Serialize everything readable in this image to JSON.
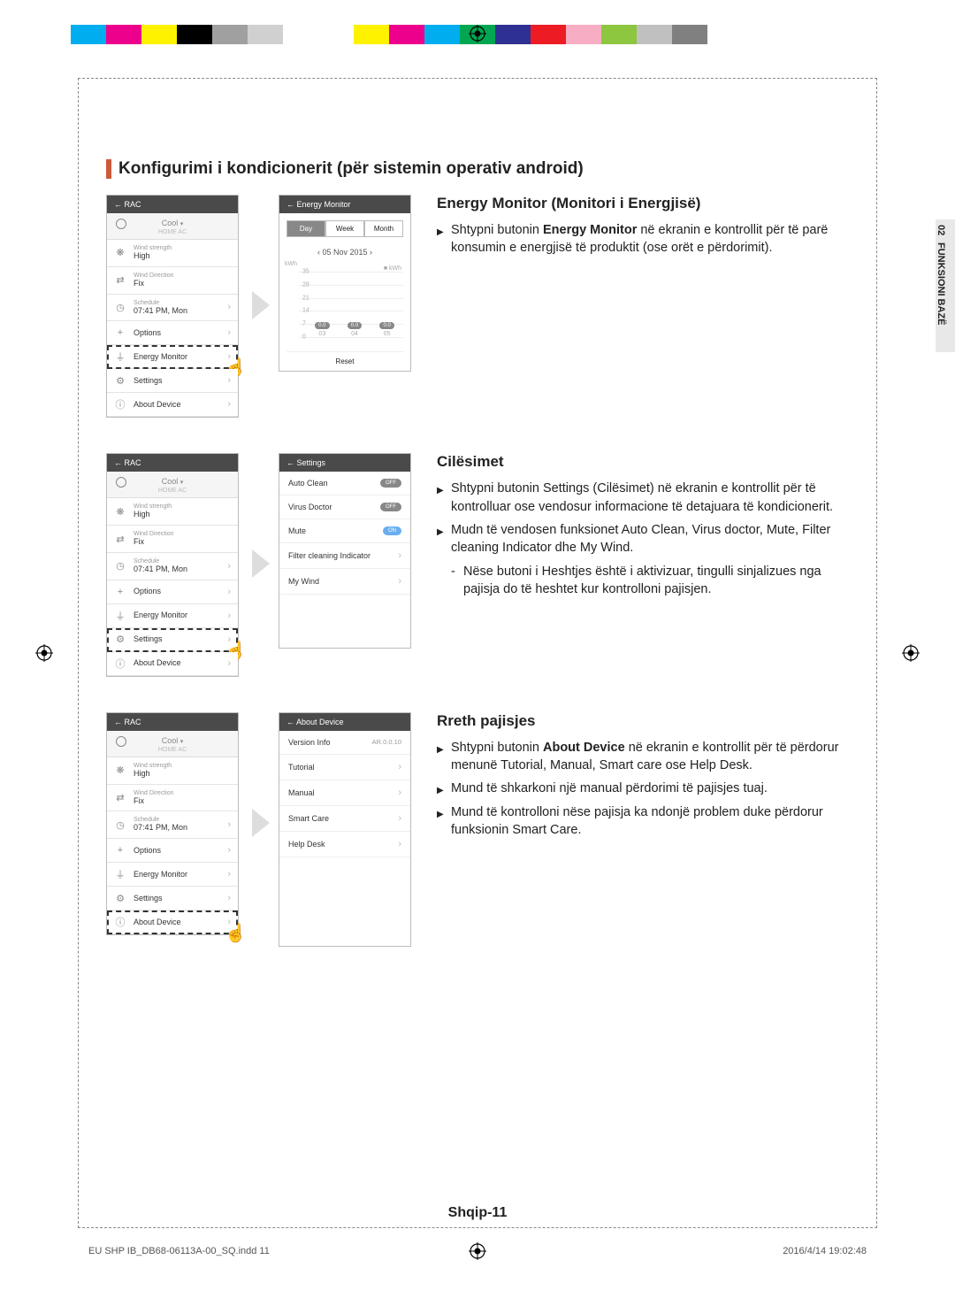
{
  "color_bar": [
    "#00aeef",
    "#ec008c",
    "#fff200",
    "#000000",
    "#a0a0a0",
    "#d0d0d0",
    "#ffffff",
    "#ffffff",
    "#fff200",
    "#ec008c",
    "#00aeef",
    "#00a651",
    "#2e3192",
    "#ed1c24",
    "#f7adc3",
    "#8dc63f",
    "#c0c0c0",
    "#808080"
  ],
  "page_title": "Konfigurimi i kondicionerit (për sistemin operativ android)",
  "side_tab": {
    "num": "02",
    "label": "FUNKSIONI BAZË"
  },
  "phone_menu": {
    "header": "RAC",
    "mode": "Cool",
    "mode_sub": "HOME AC",
    "rows": [
      {
        "icon": "fan-icon",
        "sup": "Wind strength",
        "val": "High",
        "chev": false
      },
      {
        "icon": "direction-icon",
        "sup": "Wind Direction",
        "val": "Fix",
        "chev": false
      },
      {
        "icon": "clock-icon",
        "sup": "Schedule",
        "val": "07:41 PM, Mon",
        "chev": true
      },
      {
        "icon": "plus-icon",
        "sup": "",
        "val": "Options",
        "chev": true
      },
      {
        "icon": "monitor-icon",
        "sup": "",
        "val": "Energy Monitor",
        "chev": true
      },
      {
        "icon": "gear-icon",
        "sup": "",
        "val": "Settings",
        "chev": true
      },
      {
        "icon": "info-icon",
        "sup": "",
        "val": "About Device",
        "chev": true
      }
    ]
  },
  "sections": [
    {
      "highlight_index": 4,
      "detail_type": "energy",
      "heading": "Energy Monitor (Monitori i Energjisë)",
      "bullets": [
        {
          "type": "main",
          "html": "Shtypni butonin <b>Energy Monitor</b> në ekranin e kontrollit për të parë konsumin e energjisë të produktit (ose orët e përdorimit)."
        }
      ],
      "detail": {
        "header": "Energy Monitor",
        "tabs": [
          "Day",
          "Week",
          "Month"
        ],
        "active_tab": 0,
        "date": "05 Nov 2015",
        "unit": "kWh",
        "yvals": [
          "35",
          "28",
          "21",
          "14",
          "7",
          "0"
        ],
        "bars": [
          {
            "val": "0.0",
            "x": "03"
          },
          {
            "val": "0.0",
            "x": "04"
          },
          {
            "val": "0.0",
            "x": "05"
          }
        ],
        "reset": "Reset",
        "axis_label": "kWh"
      }
    },
    {
      "highlight_index": 5,
      "detail_type": "settings",
      "heading": "Cilësimet",
      "bullets": [
        {
          "type": "main",
          "html": "Shtypni butonin Settings (Cilësimet) në ekranin e kontrollit për të kontrolluar ose vendosur informacione të detajuara të kondicionerit."
        },
        {
          "type": "main",
          "html": "Mudn të vendosen funksionet Auto Clean, Virus doctor, Mute, Filter cleaning Indicator dhe My Wind."
        },
        {
          "type": "sub",
          "html": "Nëse butoni i Heshtjes është i aktivizuar, tingulli sinjalizues nga pajisja do të heshtet kur kontrolloni pajisjen."
        }
      ],
      "detail": {
        "header": "Settings",
        "rows": [
          {
            "label": "Auto Clean",
            "kind": "pill",
            "state": "OFF"
          },
          {
            "label": "Virus Doctor",
            "kind": "pill",
            "state": "OFF"
          },
          {
            "label": "Mute",
            "kind": "pill",
            "state": "ON"
          },
          {
            "label": "Filter cleaning Indicator",
            "kind": "chev"
          },
          {
            "label": "My Wind",
            "kind": "chev"
          }
        ]
      }
    },
    {
      "highlight_index": 6,
      "detail_type": "about",
      "heading": "Rreth pajisjes",
      "bullets": [
        {
          "type": "main",
          "html": "Shtypni butonin <b>About Device</b> në ekranin e kontrollit për të përdorur menunë Tutorial, Manual, Smart care ose Help Desk."
        },
        {
          "type": "main",
          "html": "Mund të shkarkoni një manual përdorimi të pajisjes tuaj."
        },
        {
          "type": "main",
          "html": "Mund të kontrolloni nëse pajisja ka ndonjë problem duke përdorur funksionin Smart Care."
        }
      ],
      "detail": {
        "header": "About Device",
        "rows": [
          {
            "label": "Version Info",
            "kind": "val",
            "rval": "AR.0.0.10"
          },
          {
            "label": "Tutorial",
            "kind": "chev"
          },
          {
            "label": "Manual",
            "kind": "chev"
          },
          {
            "label": "Smart Care",
            "kind": "chev"
          },
          {
            "label": "Help Desk",
            "kind": "chev"
          }
        ]
      }
    }
  ],
  "page_num": "Shqip-11",
  "footer_left": "EU SHP IB_DB68-06113A-00_SQ.indd   11",
  "footer_right": "2016/4/14   19:02:48",
  "icons": {
    "fan-icon": "❋",
    "direction-icon": "⇄",
    "clock-icon": "◷",
    "plus-icon": "+",
    "monitor-icon": "⏚",
    "gear-icon": "⚙",
    "info-icon": "ⓘ"
  }
}
